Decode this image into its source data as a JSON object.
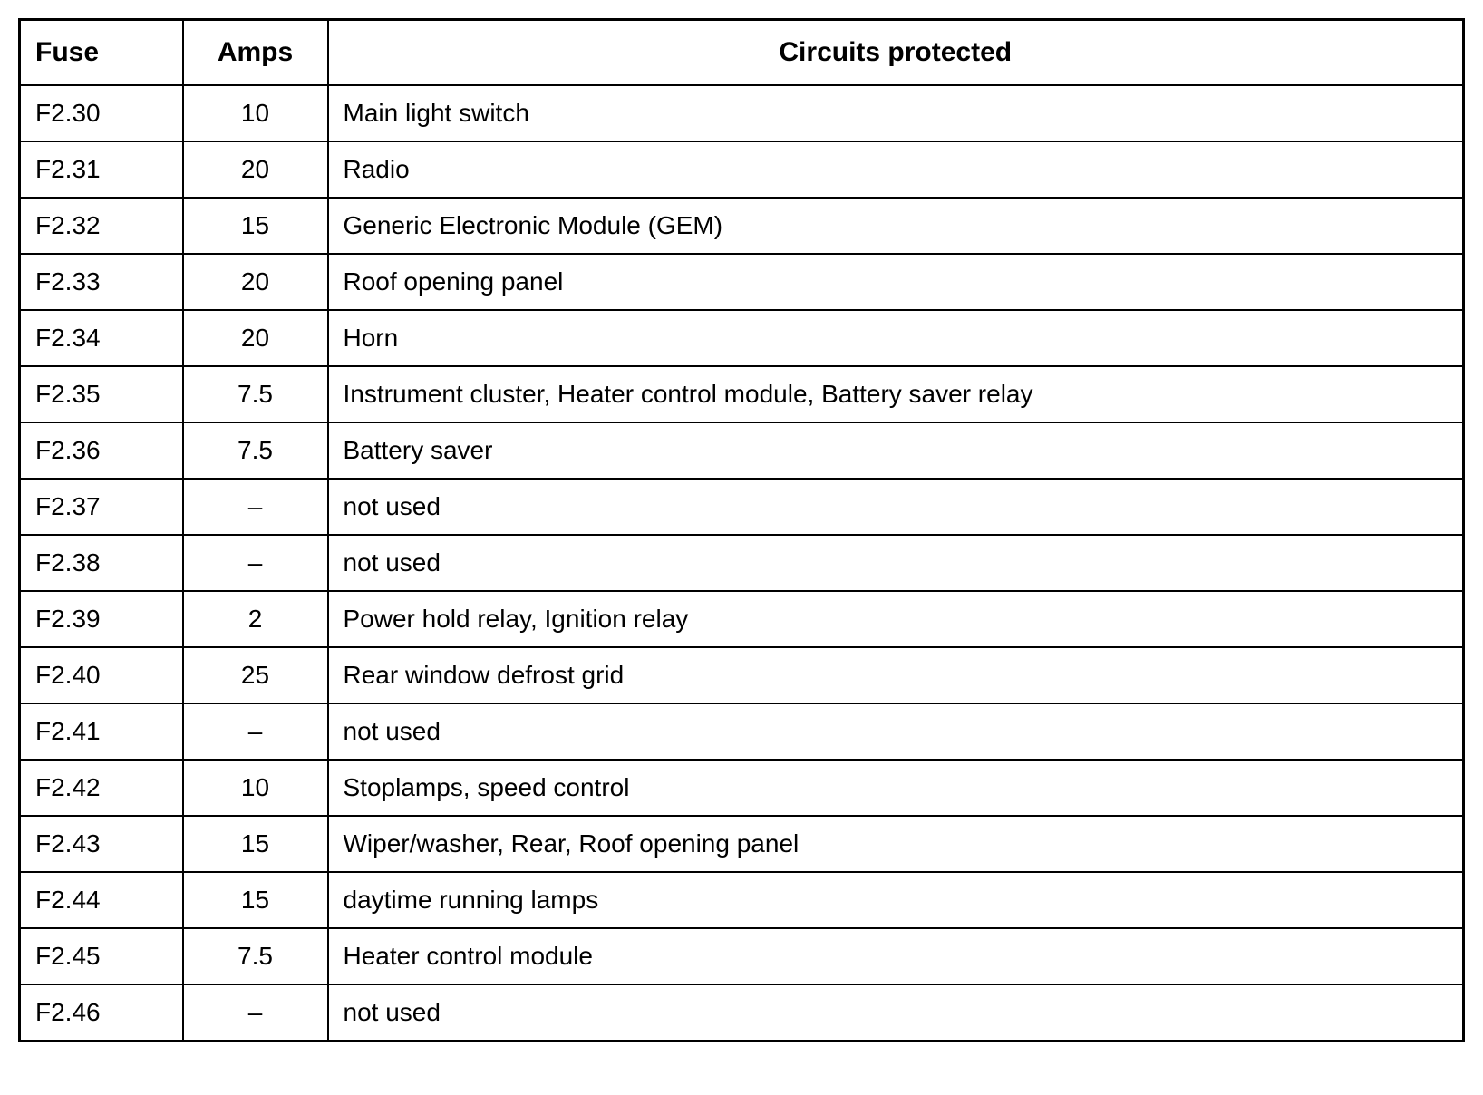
{
  "table": {
    "type": "table",
    "border_color": "#000000",
    "background_color": "#ffffff",
    "text_color": "#000000",
    "outer_border_width": 3,
    "inner_border_width": 2,
    "header_fontsize": 30,
    "header_fontweight": "bold",
    "cell_fontsize": 28,
    "cell_padding_vertical": 14,
    "cell_padding_horizontal": 16,
    "columns": [
      {
        "key": "fuse",
        "label": "Fuse",
        "width": 180,
        "header_align": "left",
        "cell_align": "left"
      },
      {
        "key": "amps",
        "label": "Amps",
        "width": 160,
        "header_align": "center",
        "cell_align": "center"
      },
      {
        "key": "circuits",
        "label": "Circuits protected",
        "width": "auto",
        "header_align": "center",
        "cell_align": "left"
      }
    ],
    "rows": [
      {
        "fuse": "F2.30",
        "amps": "10",
        "circuits": "Main light switch"
      },
      {
        "fuse": "F2.31",
        "amps": "20",
        "circuits": "Radio"
      },
      {
        "fuse": "F2.32",
        "amps": "15",
        "circuits": "Generic Electronic Module (GEM)"
      },
      {
        "fuse": "F2.33",
        "amps": "20",
        "circuits": " Roof opening panel"
      },
      {
        "fuse": "F2.34",
        "amps": "20",
        "circuits": " Horn"
      },
      {
        "fuse": "F2.35",
        "amps": "7.5",
        "circuits": "Instrument cluster, Heater control module, Battery saver relay"
      },
      {
        "fuse": "F2.36",
        "amps": "7.5",
        "circuits": "Battery saver"
      },
      {
        "fuse": "F2.37",
        "amps": "–",
        "circuits": "not used"
      },
      {
        "fuse": "F2.38",
        "amps": "–",
        "circuits": "not used"
      },
      {
        "fuse": "F2.39",
        "amps": "2",
        "circuits": "Power hold relay, Ignition relay"
      },
      {
        "fuse": "F2.40",
        "amps": "25",
        "circuits": "Rear window defrost grid"
      },
      {
        "fuse": "F2.41",
        "amps": "–",
        "circuits": "not used"
      },
      {
        "fuse": "F2.42",
        "amps": "10",
        "circuits": "Stoplamps, speed control"
      },
      {
        "fuse": "F2.43",
        "amps": "15",
        "circuits": "Wiper/washer, Rear, Roof opening panel"
      },
      {
        "fuse": "F2.44",
        "amps": "15",
        "circuits": "daytime running lamps"
      },
      {
        "fuse": "F2.45",
        "amps": "7.5",
        "circuits": "Heater control module"
      },
      {
        "fuse": "F2.46",
        "amps": "–",
        "circuits": "not used"
      }
    ]
  }
}
